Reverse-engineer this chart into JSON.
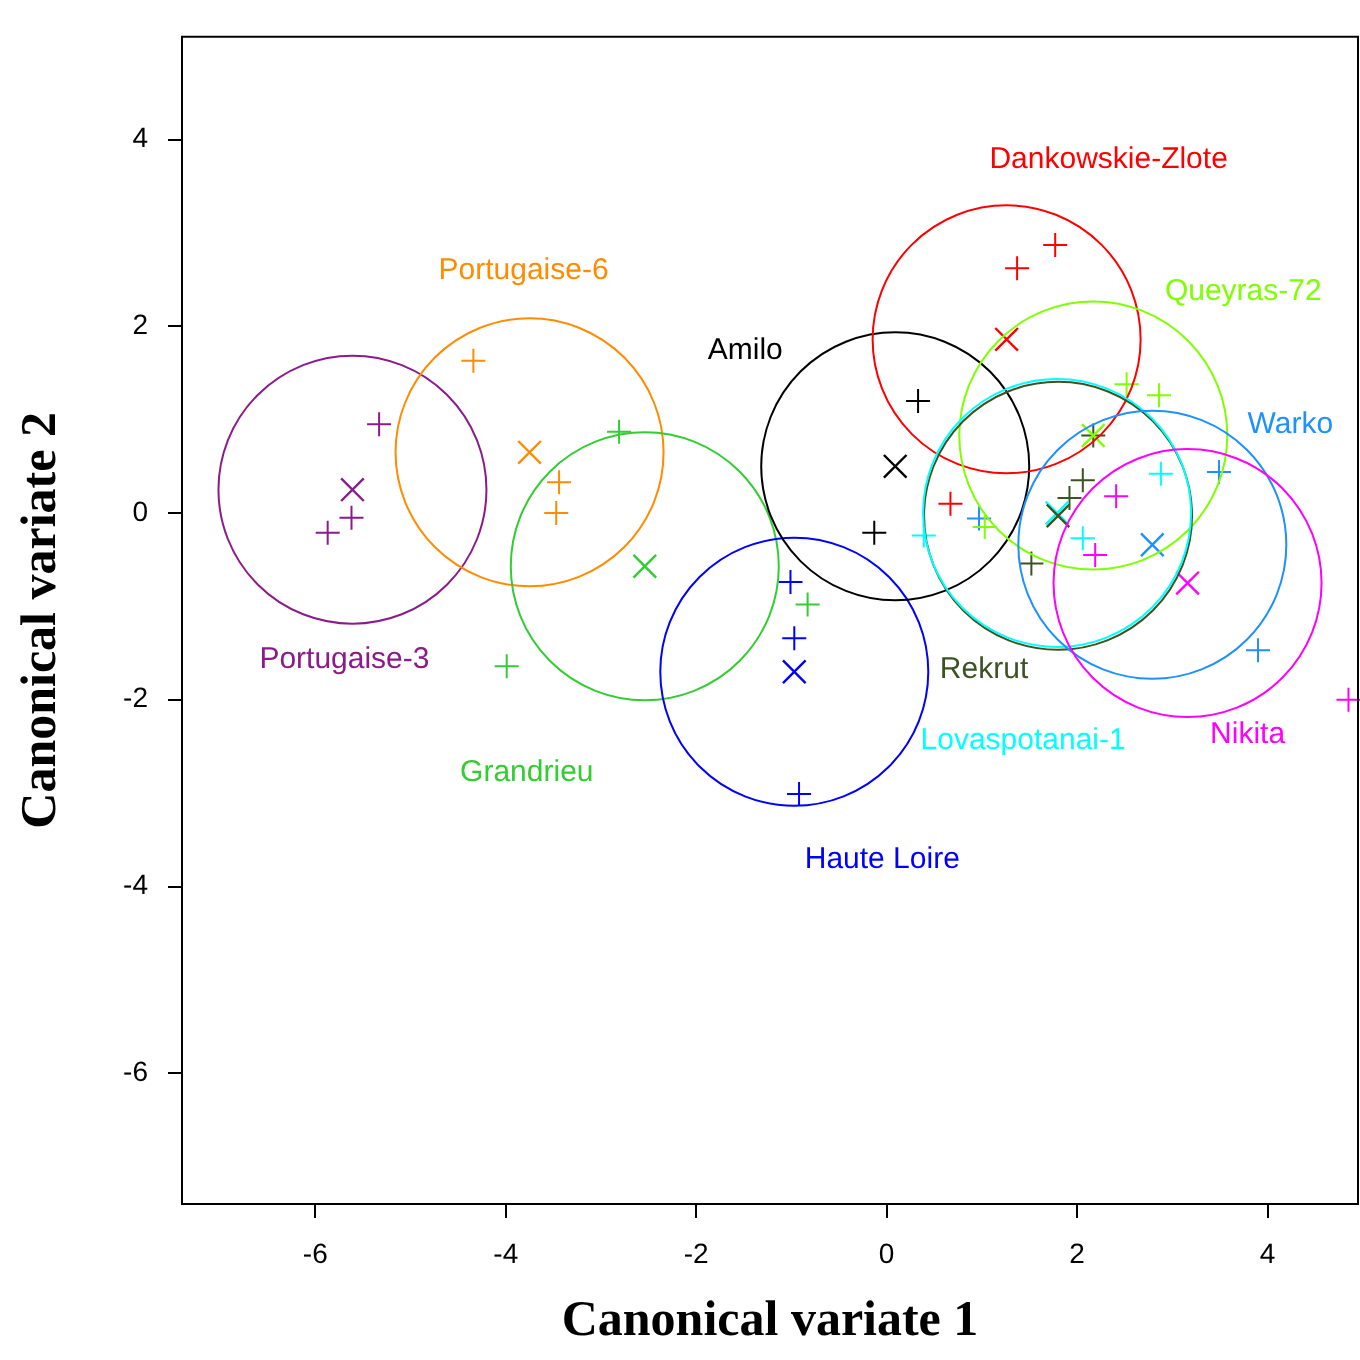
{
  "chart_data": {
    "type": "scatter",
    "xlabel": "Canonical variate 1",
    "ylabel": "Canonical variate 2",
    "xlim": [
      -7.4,
      4.95
    ],
    "ylim": [
      -7.4,
      5.1
    ],
    "xticks": [
      -6,
      -4,
      -2,
      0,
      2,
      4
    ],
    "yticks": [
      -6,
      -4,
      -2,
      0,
      2,
      4
    ],
    "grid": false,
    "legend": false,
    "series": [
      {
        "name": "Portugaise-3",
        "color": "#8b1a8b",
        "x": [
          -5.61
        ],
        "values": [
          0.25
        ]
      },
      {
        "name": "Portugaise-6",
        "color": "#ff8c00",
        "x": [
          -3.75
        ],
        "values": [
          0.65
        ]
      },
      {
        "name": "Grandrieu",
        "color": "#32cd32",
        "x": [
          -2.54
        ],
        "values": [
          -0.57
        ]
      },
      {
        "name": "Haute Loire",
        "color": "#0000ff",
        "x": [
          -0.97
        ],
        "values": [
          -1.7
        ]
      },
      {
        "name": "Amilo",
        "color": "#000000",
        "x": [
          0.09
        ],
        "values": [
          0.5
        ]
      },
      {
        "name": "Dankowskie-Zlote",
        "color": "#ff0000",
        "x": [
          1.26
        ],
        "values": [
          1.86
        ]
      },
      {
        "name": "Queyras-72",
        "color": "#7fff00",
        "x": [
          2.17
        ],
        "values": [
          0.83
        ]
      },
      {
        "name": "Rekrut",
        "color": "#3b5323",
        "x": [
          1.8
        ],
        "values": [
          -0.03
        ]
      },
      {
        "name": "Lovaspotanai-1",
        "color": "#00ffff",
        "x": [
          1.79
        ],
        "values": [
          0.0
        ]
      },
      {
        "name": "Warko",
        "color": "#1e90ff",
        "x": [
          2.79
        ],
        "values": [
          -0.34
        ]
      },
      {
        "name": "Nikita",
        "color": "#ff00ff",
        "x": [
          3.16
        ],
        "values": [
          -0.75
        ]
      },
      {
        "marker": "cross",
        "color": "#8b1a8b",
        "x": [
          -5.33,
          -5.62,
          -5.87
        ],
        "values": [
          0.95,
          -0.05,
          -0.21
        ]
      },
      {
        "marker": "cross",
        "color": "#ff8c00",
        "x": [
          -4.34,
          -3.44,
          -3.47
        ],
        "values": [
          1.63,
          0.33,
          0.0
        ]
      },
      {
        "marker": "cross",
        "color": "#32cd32",
        "x": [
          -2.81,
          -3.99,
          -0.83
        ],
        "values": [
          0.87,
          -1.64,
          -0.98
        ]
      },
      {
        "marker": "cross",
        "color": "#0000ff",
        "x": [
          -1.01,
          -0.97,
          -0.92
        ],
        "values": [
          -0.74,
          -1.34,
          -3.01
        ]
      },
      {
        "marker": "cross",
        "color": "#000000",
        "x": [
          0.33,
          -0.13
        ],
        "values": [
          1.2,
          -0.21
        ]
      },
      {
        "marker": "cross",
        "color": "#ff0000",
        "x": [
          1.37,
          1.77,
          0.67
        ],
        "values": [
          2.62,
          2.87,
          0.1
        ]
      },
      {
        "marker": "cross",
        "color": "#7fff00",
        "x": [
          2.52,
          2.86,
          1.03
        ],
        "values": [
          1.38,
          1.26,
          -0.15
        ]
      },
      {
        "marker": "cross",
        "color": "#3b5323",
        "x": [
          2.17,
          2.06,
          1.92,
          1.52
        ],
        "values": [
          0.83,
          0.35,
          0.16,
          -0.54
        ]
      },
      {
        "marker": "cross",
        "color": "#00ffff",
        "x": [
          0.39,
          2.88,
          2.06
        ],
        "values": [
          -0.24,
          0.42,
          -0.27
        ]
      },
      {
        "marker": "cross",
        "color": "#1e90ff",
        "x": [
          3.49,
          0.97,
          3.9
        ],
        "values": [
          0.44,
          -0.06,
          -1.47
        ]
      },
      {
        "marker": "cross",
        "color": "#ff00ff",
        "x": [
          2.41,
          2.19,
          4.85
        ],
        "values": [
          0.18,
          -0.45,
          -2.0
        ]
      }
    ]
  }
}
